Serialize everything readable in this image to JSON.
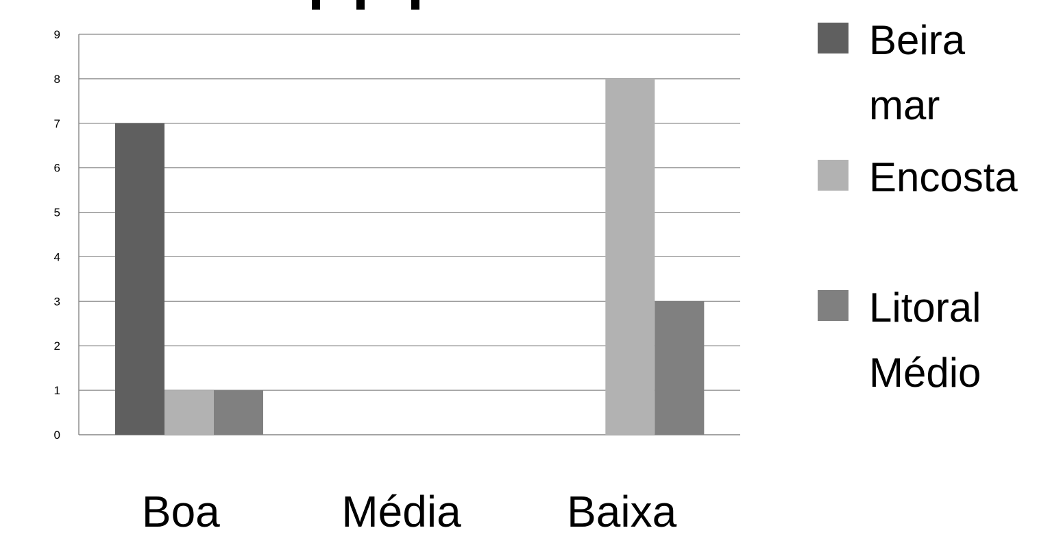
{
  "chart_data": {
    "type": "bar",
    "title": "",
    "xlabel": "",
    "ylabel": "",
    "categories": [
      "Boa",
      "Média",
      "Baixa"
    ],
    "series": [
      {
        "name": "Beira mar",
        "name_lines": [
          "Beira",
          "mar"
        ],
        "color": "#5f5f5f",
        "values": [
          7,
          0,
          0
        ]
      },
      {
        "name": "Encosta",
        "name_lines": [
          "Encosta"
        ],
        "color": "#b2b2b2",
        "values": [
          1,
          0,
          8
        ]
      },
      {
        "name": "Litoral Médio",
        "name_lines": [
          "Litoral",
          "Médio"
        ],
        "color": "#808080",
        "values": [
          1,
          0,
          3
        ]
      }
    ],
    "ylim": [
      0,
      9
    ],
    "yticks": [
      0,
      1,
      2,
      3,
      4,
      5,
      6,
      7,
      8,
      9
    ],
    "grid": true,
    "legend_position": "right",
    "gridline_color": "#868686"
  }
}
